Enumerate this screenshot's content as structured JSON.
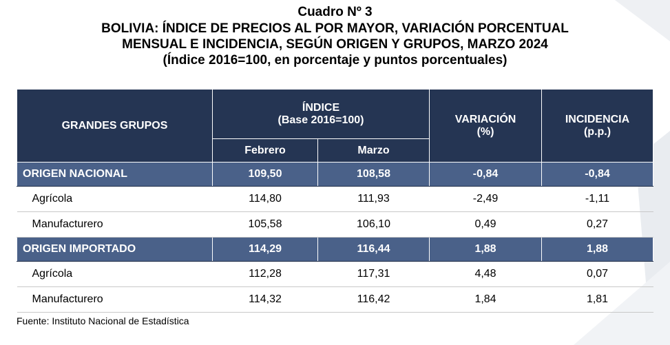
{
  "title": {
    "line1": "Cuadro Nº 3",
    "line2": "BOLIVIA: ÍNDICE DE PRECIOS AL POR MAYOR, VARIACIÓN PORCENTUAL",
    "line3": "MENSUAL E INCIDENCIA, SEGÚN ORIGEN Y GRUPOS, MARZO 2024",
    "line4": "(Índice 2016=100, en porcentaje y puntos porcentuales)"
  },
  "headers": {
    "groups": "GRANDES GRUPOS",
    "index": "ÍNDICE",
    "index_base": "(Base 2016=100)",
    "feb": "Febrero",
    "mar": "Marzo",
    "variation": "VARIACIÓN",
    "variation_unit": "(%)",
    "incidence": "INCIDENCIA",
    "incidence_unit": "(p.p.)"
  },
  "rows": [
    {
      "name": "ORIGEN NACIONAL",
      "feb": "109,50",
      "mar": "108,58",
      "var": "-0,84",
      "inc": "-0,84"
    },
    {
      "name": "Agrícola",
      "feb": "114,80",
      "mar": "111,93",
      "var": "-2,49",
      "inc": "-1,11"
    },
    {
      "name": "Manufacturero",
      "feb": "105,58",
      "mar": "106,10",
      "var": "0,49",
      "inc": "0,27"
    },
    {
      "name": "ORIGEN IMPORTADO",
      "feb": "114,29",
      "mar": "116,44",
      "var": "1,88",
      "inc": "1,88"
    },
    {
      "name": "Agrícola",
      "feb": "112,28",
      "mar": "117,31",
      "var": "4,48",
      "inc": "0,07"
    },
    {
      "name": "Manufacturero",
      "feb": "114,32",
      "mar": "116,42",
      "var": "1,84",
      "inc": "1,81"
    }
  ],
  "source": "Fuente: Instituto Nacional de Estadística",
  "colors": {
    "header": "#253553",
    "origin_row": "#4a6189"
  }
}
